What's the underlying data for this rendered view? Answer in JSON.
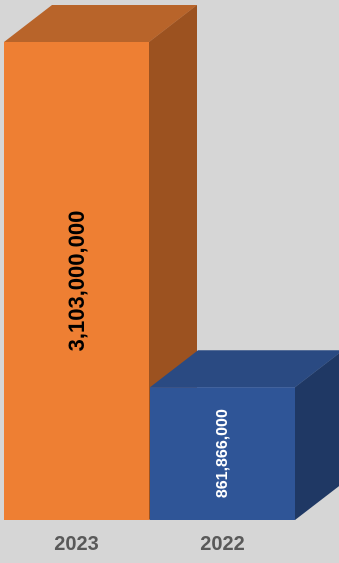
{
  "chart_data": {
    "type": "bar",
    "style": "3d-column",
    "categories": [
      "2023",
      "2022"
    ],
    "values": [
      3103000000,
      861866000
    ],
    "data_labels": [
      "3,103,000,000",
      "861,866,000"
    ],
    "colors": {
      "2023": {
        "front": "#ee7f33",
        "side": "#9c5220",
        "top": "#b8642a",
        "label": "#000000"
      },
      "2022": {
        "front": "#2f5597",
        "side": "#1f3864",
        "top": "#2a4a82",
        "label": "#ffffff"
      }
    },
    "tick_label_color": "#595959",
    "background": "#d6d6d6",
    "ylim": [
      0,
      3103000000
    ],
    "grid": false,
    "legend": "none"
  }
}
